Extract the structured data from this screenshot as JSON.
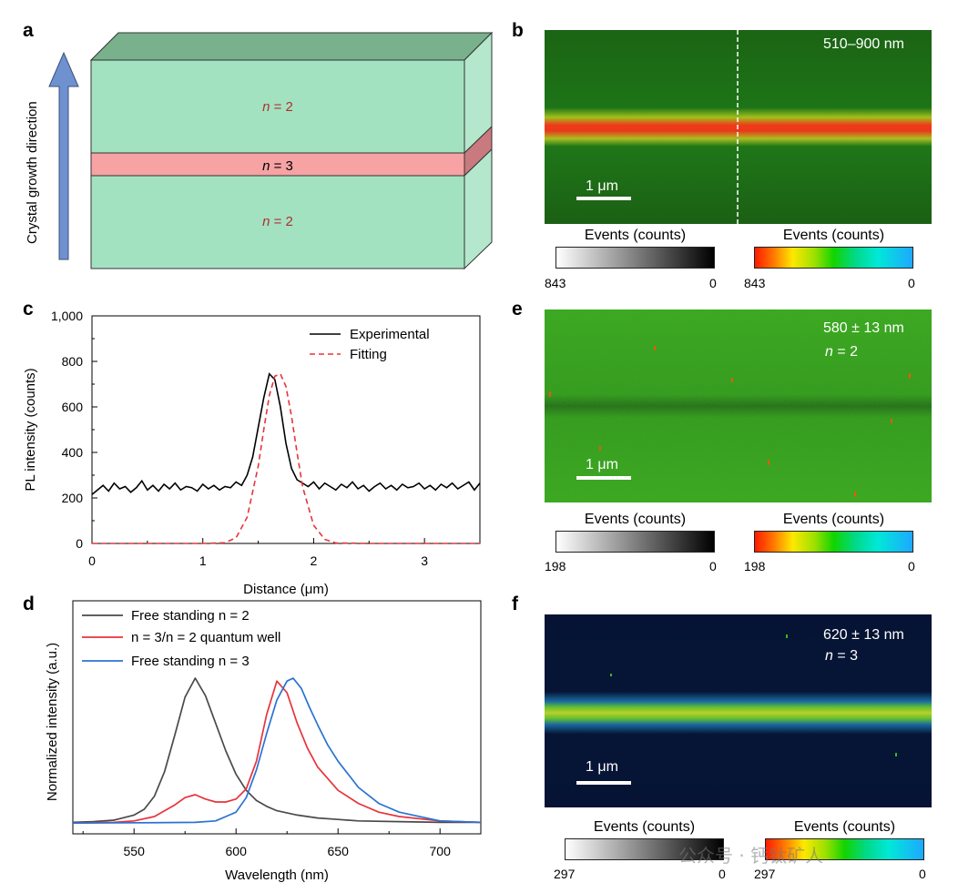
{
  "panel_labels": {
    "a": "a",
    "b": "b",
    "c": "c",
    "d": "d",
    "e": "e",
    "f": "f"
  },
  "panel_a": {
    "axis_label": "Crystal growth direction",
    "layers": [
      {
        "n_symbol": "n",
        "value": "= 2"
      },
      {
        "n_symbol": "n",
        "value": "= 3"
      },
      {
        "n_symbol": "n",
        "value": "= 2"
      }
    ],
    "colors": {
      "green_face": "#a3e2c1",
      "green_top": "#79b18d",
      "pink_face": "#f7a2a3",
      "arrow": "#6f91cf"
    }
  },
  "panel_b": {
    "wavelength": "510–900 nm",
    "scalebar": "1 μm",
    "cbar_gray": {
      "title": "Events (counts)",
      "max": "843",
      "min": "0"
    },
    "cbar_color": {
      "title": "Events (counts)",
      "max": "843",
      "min": "0"
    }
  },
  "panel_e": {
    "wavelength": "580 ± 13 nm",
    "n_symbol": "n",
    "n_value": "= 2",
    "scalebar": "1 μm",
    "cbar_gray": {
      "title": "Events (counts)",
      "max": "198",
      "min": "0"
    },
    "cbar_color": {
      "title": "Events (counts)",
      "max": "198",
      "min": "0"
    }
  },
  "panel_f": {
    "wavelength": "620 ± 13 nm",
    "n_symbol": "n",
    "n_value": "= 3",
    "scalebar": "1 μm",
    "cbar_gray": {
      "title": "Events (counts)",
      "max": "297",
      "min": "0"
    },
    "cbar_color": {
      "title": "Events (counts)",
      "max": "297",
      "min": "0"
    },
    "watermark": "公众号 · 钙钛矿人"
  },
  "chart_data": [
    {
      "id": "c",
      "type": "line",
      "xlabel": "Distance (μm)",
      "ylabel": "PL intensity (counts)",
      "xlim": [
        0,
        3.5
      ],
      "ylim": [
        0,
        1000
      ],
      "xticks": [
        "0",
        "1",
        "2",
        "3"
      ],
      "yticks": [
        "0",
        "200",
        "400",
        "600",
        "800",
        "1,000"
      ],
      "series": [
        {
          "name": "Experimental",
          "color": "#000000",
          "style": "solid",
          "x": [
            0.0,
            0.05,
            0.1,
            0.15,
            0.2,
            0.25,
            0.3,
            0.35,
            0.4,
            0.45,
            0.5,
            0.55,
            0.6,
            0.65,
            0.7,
            0.75,
            0.8,
            0.85,
            0.9,
            0.95,
            1.0,
            1.05,
            1.1,
            1.15,
            1.2,
            1.25,
            1.3,
            1.35,
            1.4,
            1.45,
            1.5,
            1.55,
            1.6,
            1.65,
            1.7,
            1.75,
            1.8,
            1.85,
            1.9,
            1.95,
            2.0,
            2.05,
            2.1,
            2.15,
            2.2,
            2.25,
            2.3,
            2.35,
            2.4,
            2.45,
            2.5,
            2.55,
            2.6,
            2.65,
            2.7,
            2.75,
            2.8,
            2.85,
            2.9,
            2.95,
            3.0,
            3.05,
            3.1,
            3.15,
            3.2,
            3.25,
            3.3,
            3.35,
            3.4,
            3.45,
            3.5
          ],
          "y": [
            215,
            235,
            255,
            230,
            265,
            240,
            250,
            225,
            245,
            275,
            235,
            255,
            230,
            260,
            240,
            265,
            235,
            250,
            245,
            230,
            260,
            240,
            255,
            235,
            250,
            245,
            270,
            255,
            300,
            380,
            510,
            640,
            745,
            720,
            600,
            440,
            330,
            280,
            265,
            250,
            270,
            240,
            265,
            250,
            235,
            260,
            245,
            270,
            240,
            255,
            230,
            250,
            265,
            240,
            255,
            235,
            260,
            245,
            250,
            265,
            240,
            255,
            235,
            260,
            245,
            265,
            240,
            255,
            270,
            235,
            265
          ]
        },
        {
          "name": "Fitting",
          "color": "#e8333a",
          "style": "dashed",
          "x": [
            0.0,
            0.5,
            1.0,
            1.2,
            1.3,
            1.4,
            1.5,
            1.55,
            1.6,
            1.65,
            1.7,
            1.75,
            1.8,
            1.85,
            1.9,
            2.0,
            2.1,
            2.2,
            2.5,
            3.0,
            3.5
          ],
          "y": [
            0,
            0,
            0,
            3,
            25,
            115,
            340,
            500,
            650,
            735,
            745,
            690,
            560,
            400,
            250,
            80,
            18,
            2,
            0,
            0,
            0
          ]
        }
      ]
    },
    {
      "id": "d",
      "type": "line",
      "xlabel": "Wavelength (nm)",
      "ylabel": "Normalized intensity (a.u.)",
      "xlim": [
        520,
        720
      ],
      "ylim": [
        0,
        1.2
      ],
      "xticks": [
        "550",
        "600",
        "650",
        "700"
      ],
      "series": [
        {
          "name": "Free standing  n = 2",
          "color": "#4a4a4a",
          "x": [
            520,
            530,
            540,
            550,
            555,
            560,
            565,
            570,
            575,
            580,
            585,
            590,
            595,
            600,
            605,
            610,
            615,
            620,
            630,
            640,
            650,
            660,
            680,
            700,
            720
          ],
          "y": [
            0.01,
            0.015,
            0.025,
            0.06,
            0.1,
            0.19,
            0.36,
            0.61,
            0.87,
            1.0,
            0.88,
            0.69,
            0.5,
            0.34,
            0.23,
            0.16,
            0.12,
            0.09,
            0.06,
            0.04,
            0.03,
            0.02,
            0.015,
            0.01,
            0.01
          ]
        },
        {
          "name": "n = 3/n = 2 quantum well",
          "color": "#e8333a",
          "x": [
            520,
            540,
            550,
            560,
            570,
            575,
            580,
            585,
            590,
            595,
            600,
            605,
            610,
            615,
            620,
            625,
            630,
            635,
            640,
            650,
            660,
            670,
            680,
            700,
            720
          ],
          "y": [
            0.005,
            0.01,
            0.02,
            0.05,
            0.13,
            0.18,
            0.2,
            0.17,
            0.15,
            0.15,
            0.17,
            0.24,
            0.43,
            0.75,
            0.98,
            0.9,
            0.69,
            0.52,
            0.39,
            0.23,
            0.14,
            0.08,
            0.05,
            0.02,
            0.01
          ]
        },
        {
          "name": "Free standing n = 3",
          "color": "#2a72d4",
          "x": [
            520,
            560,
            580,
            590,
            600,
            605,
            610,
            615,
            620,
            625,
            628,
            632,
            636,
            640,
            645,
            650,
            660,
            670,
            680,
            700,
            720
          ],
          "y": [
            0.005,
            0.008,
            0.01,
            0.02,
            0.08,
            0.18,
            0.37,
            0.62,
            0.85,
            0.98,
            1.0,
            0.93,
            0.8,
            0.68,
            0.54,
            0.43,
            0.25,
            0.14,
            0.08,
            0.02,
            0.01
          ]
        }
      ]
    }
  ]
}
